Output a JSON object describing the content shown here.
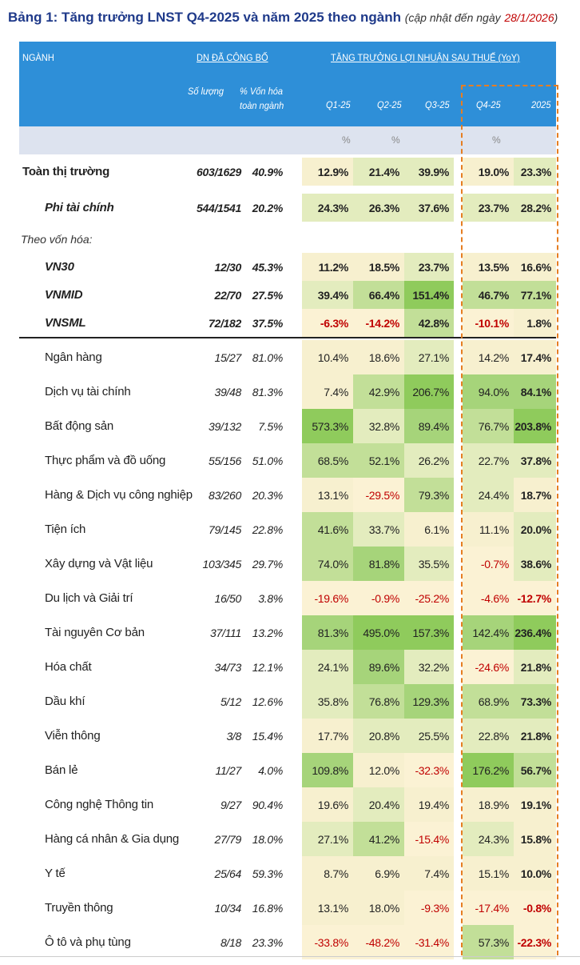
{
  "title": {
    "main": "Bảng 1: Tăng trưởng LNST Q4-2025 và năm 2025 theo ngành",
    "sub": "(cập nhật đến ngày",
    "date": "28/1/2026",
    "close": ")"
  },
  "header": {
    "nganh": "NGÀNH",
    "dn_group": "DN ĐÃ CÔNG BỐ",
    "growth_group": "TĂNG TRƯỞNG LỢI NHUẬN SAU THUẾ (YoY)",
    "so_luong": "Số lượng",
    "von_hoa_1": "% Vốn hóa",
    "von_hoa_2": "toàn ngành",
    "q1": "Q1-25",
    "q2": "Q2-25",
    "q3": "Q3-25",
    "q4": "Q4-25",
    "y": "2025",
    "unit": "%"
  },
  "group_label": "Theo vốn hóa:",
  "colors": {
    "header_bg": "#2e8fd8",
    "cell_low": "#fbf2d4",
    "cell_mid": "#d5e8ae",
    "cell_high": "#8fcb5c",
    "negative_text": "#c00000",
    "highlight_box": "#e67e22"
  },
  "rows": [
    {
      "name": "Toàn thị trường",
      "count": "603/1629",
      "cap": "40.9%",
      "q1": "12.9%",
      "q2": "21.4%",
      "q3": "39.9%",
      "q4": "19.0%",
      "y": "23.3%"
    },
    {
      "name": "Phi tài chính",
      "count": "544/1541",
      "cap": "20.2%",
      "q1": "24.3%",
      "q2": "26.3%",
      "q3": "37.6%",
      "q4": "23.7%",
      "y": "28.2%"
    },
    {
      "name": "VN30",
      "count": "12/30",
      "cap": "45.3%",
      "q1": "11.2%",
      "q2": "18.5%",
      "q3": "23.7%",
      "q4": "13.5%",
      "y": "16.6%"
    },
    {
      "name": "VNMID",
      "count": "22/70",
      "cap": "27.5%",
      "q1": "39.4%",
      "q2": "66.4%",
      "q3": "151.4%",
      "q4": "46.7%",
      "y": "77.1%"
    },
    {
      "name": "VNSML",
      "count": "72/182",
      "cap": "37.5%",
      "q1": "-6.3%",
      "q2": "-14.2%",
      "q3": "42.8%",
      "q4": "-10.1%",
      "y": "1.8%"
    },
    {
      "name": "Ngân hàng",
      "count": "15/27",
      "cap": "81.0%",
      "q1": "10.4%",
      "q2": "18.6%",
      "q3": "27.1%",
      "q4": "14.2%",
      "y": "17.4%"
    },
    {
      "name": "Dịch vụ tài chính",
      "count": "39/48",
      "cap": "81.3%",
      "q1": "7.4%",
      "q2": "42.9%",
      "q3": "206.7%",
      "q4": "94.0%",
      "y": "84.1%"
    },
    {
      "name": "Bất động sản",
      "count": "39/132",
      "cap": "7.5%",
      "q1": "573.3%",
      "q2": "32.8%",
      "q3": "89.4%",
      "q4": "76.7%",
      "y": "203.8%"
    },
    {
      "name": "Thực phẩm và đồ uống",
      "count": "55/156",
      "cap": "51.0%",
      "q1": "68.5%",
      "q2": "52.1%",
      "q3": "26.2%",
      "q4": "22.7%",
      "y": "37.8%"
    },
    {
      "name": "Hàng & Dịch vụ công nghiệp",
      "count": "83/260",
      "cap": "20.3%",
      "q1": "13.1%",
      "q2": "-29.5%",
      "q3": "79.3%",
      "q4": "24.4%",
      "y": "18.7%"
    },
    {
      "name": "Tiện ích",
      "count": "79/145",
      "cap": "22.8%",
      "q1": "41.6%",
      "q2": "33.7%",
      "q3": "6.1%",
      "q4": "11.1%",
      "y": "20.0%"
    },
    {
      "name": "Xây dựng và Vật liệu",
      "count": "103/345",
      "cap": "29.7%",
      "q1": "74.0%",
      "q2": "81.8%",
      "q3": "35.5%",
      "q4": "-0.7%",
      "y": "38.6%"
    },
    {
      "name": "Du lịch và Giải trí",
      "count": "16/50",
      "cap": "3.8%",
      "q1": "-19.6%",
      "q2": "-0.9%",
      "q3": "-25.2%",
      "q4": "-4.6%",
      "y": "-12.7%"
    },
    {
      "name": "Tài nguyên Cơ bản",
      "count": "37/111",
      "cap": "13.2%",
      "q1": "81.3%",
      "q2": "495.0%",
      "q3": "157.3%",
      "q4": "142.4%",
      "y": "236.4%"
    },
    {
      "name": "Hóa chất",
      "count": "34/73",
      "cap": "12.1%",
      "q1": "24.1%",
      "q2": "89.6%",
      "q3": "32.2%",
      "q4": "-24.6%",
      "y": "21.8%"
    },
    {
      "name": "Dầu khí",
      "count": "5/12",
      "cap": "12.6%",
      "q1": "35.8%",
      "q2": "76.8%",
      "q3": "129.3%",
      "q4": "68.9%",
      "y": "73.3%"
    },
    {
      "name": "Viễn thông",
      "count": "3/8",
      "cap": "15.4%",
      "q1": "17.7%",
      "q2": "20.8%",
      "q3": "25.5%",
      "q4": "22.8%",
      "y": "21.8%"
    },
    {
      "name": "Bán lẻ",
      "count": "11/27",
      "cap": "4.0%",
      "q1": "109.8%",
      "q2": "12.0%",
      "q3": "-32.3%",
      "q4": "176.2%",
      "y": "56.7%"
    },
    {
      "name": "Công nghệ Thông tin",
      "count": "9/27",
      "cap": "90.4%",
      "q1": "19.6%",
      "q2": "20.4%",
      "q3": "19.4%",
      "q4": "18.9%",
      "y": "19.1%"
    },
    {
      "name": "Hàng cá nhân & Gia dụng",
      "count": "27/79",
      "cap": "18.0%",
      "q1": "27.1%",
      "q2": "41.2%",
      "q3": "-15.4%",
      "q4": "24.3%",
      "y": "15.8%"
    },
    {
      "name": "Y tế",
      "count": "25/64",
      "cap": "59.3%",
      "q1": "8.7%",
      "q2": "6.9%",
      "q3": "7.4%",
      "q4": "15.1%",
      "y": "10.0%"
    },
    {
      "name": "Truyền thông",
      "count": "10/34",
      "cap": "16.8%",
      "q1": "13.1%",
      "q2": "18.0%",
      "q3": "-9.3%",
      "q4": "-17.4%",
      "y": "-0.8%"
    },
    {
      "name": "Ô tô và phụ tùng",
      "count": "8/18",
      "cap": "23.3%",
      "q1": "-33.8%",
      "q2": "-48.2%",
      "q3": "-31.4%",
      "q4": "57.3%",
      "y": "-22.3%"
    }
  ]
}
